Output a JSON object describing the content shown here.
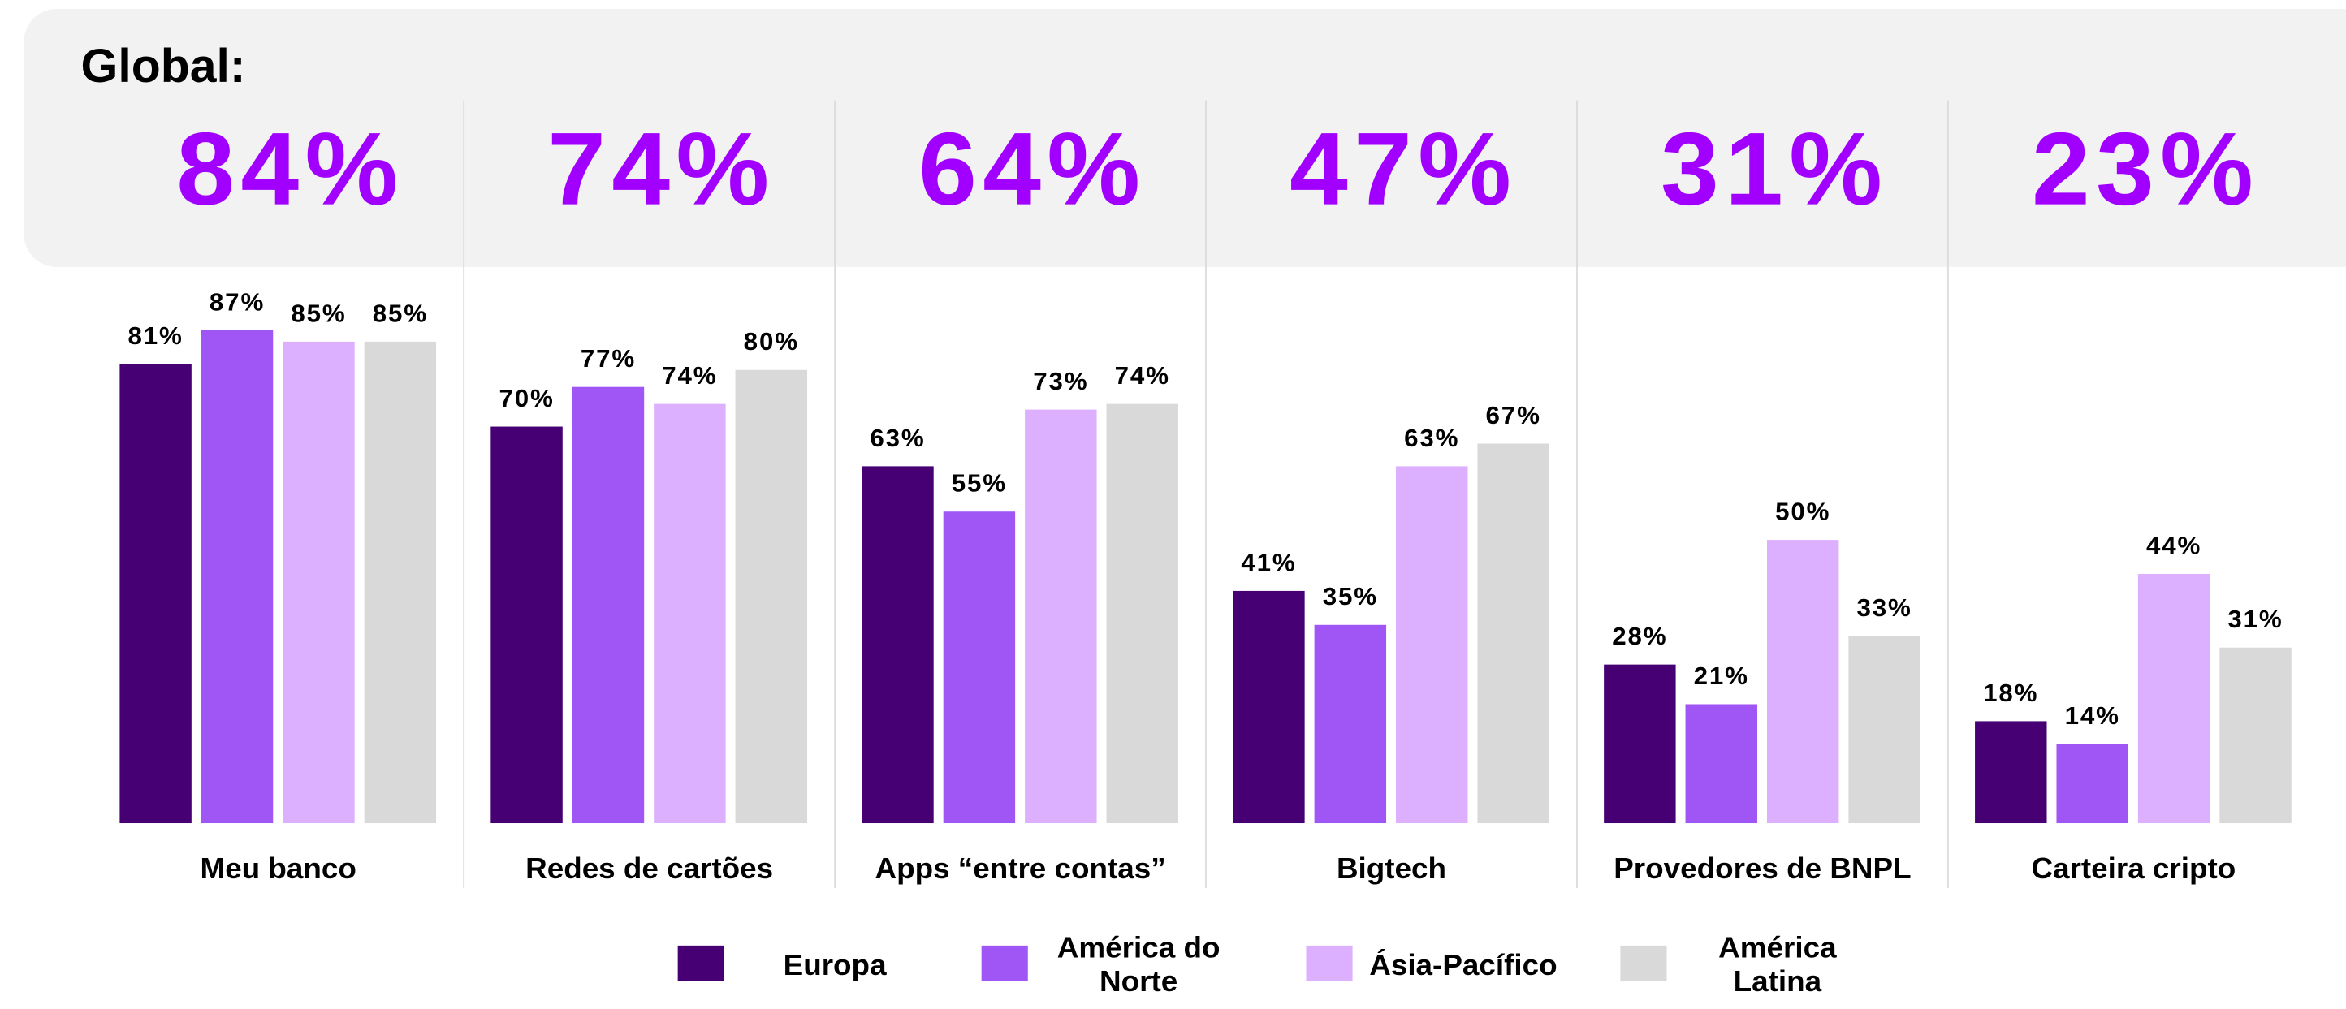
{
  "chart_data": {
    "type": "bar",
    "title": "Global:",
    "categories": [
      "Meu banco",
      "Redes de cartões",
      "Apps “entre contas”",
      "Bigtech",
      "Provedores de BNPL",
      "Carteira cripto"
    ],
    "global_values": [
      84,
      74,
      64,
      47,
      31,
      23
    ],
    "global_labels": [
      "84%",
      "74%",
      "64%",
      "47%",
      "31%",
      "23%"
    ],
    "global_color": "#a100ff",
    "series": [
      {
        "name": "Europa",
        "color": "#460073",
        "values": [
          81,
          70,
          63,
          41,
          28,
          18
        ],
        "value_labels": [
          "81%",
          "70%",
          "63%",
          "41%",
          "28%",
          "18%"
        ]
      },
      {
        "name": "América do Norte",
        "color": "#a055f5",
        "values": [
          87,
          77,
          55,
          35,
          21,
          14
        ],
        "value_labels": [
          "87%",
          "77%",
          "55%",
          "35%",
          "21%",
          "14%"
        ]
      },
      {
        "name": "Ásia-Pacífico",
        "color": "#dcafff",
        "values": [
          85,
          74,
          73,
          63,
          50,
          44
        ],
        "value_labels": [
          "85%",
          "74%",
          "73%",
          "63%",
          "50%",
          "44%"
        ]
      },
      {
        "name": "América Latina",
        "color": "#d9d9d9",
        "values": [
          85,
          80,
          74,
          67,
          33,
          31
        ],
        "value_labels": [
          "85%",
          "80%",
          "74%",
          "67%",
          "33%",
          "31%"
        ]
      }
    ]
  }
}
